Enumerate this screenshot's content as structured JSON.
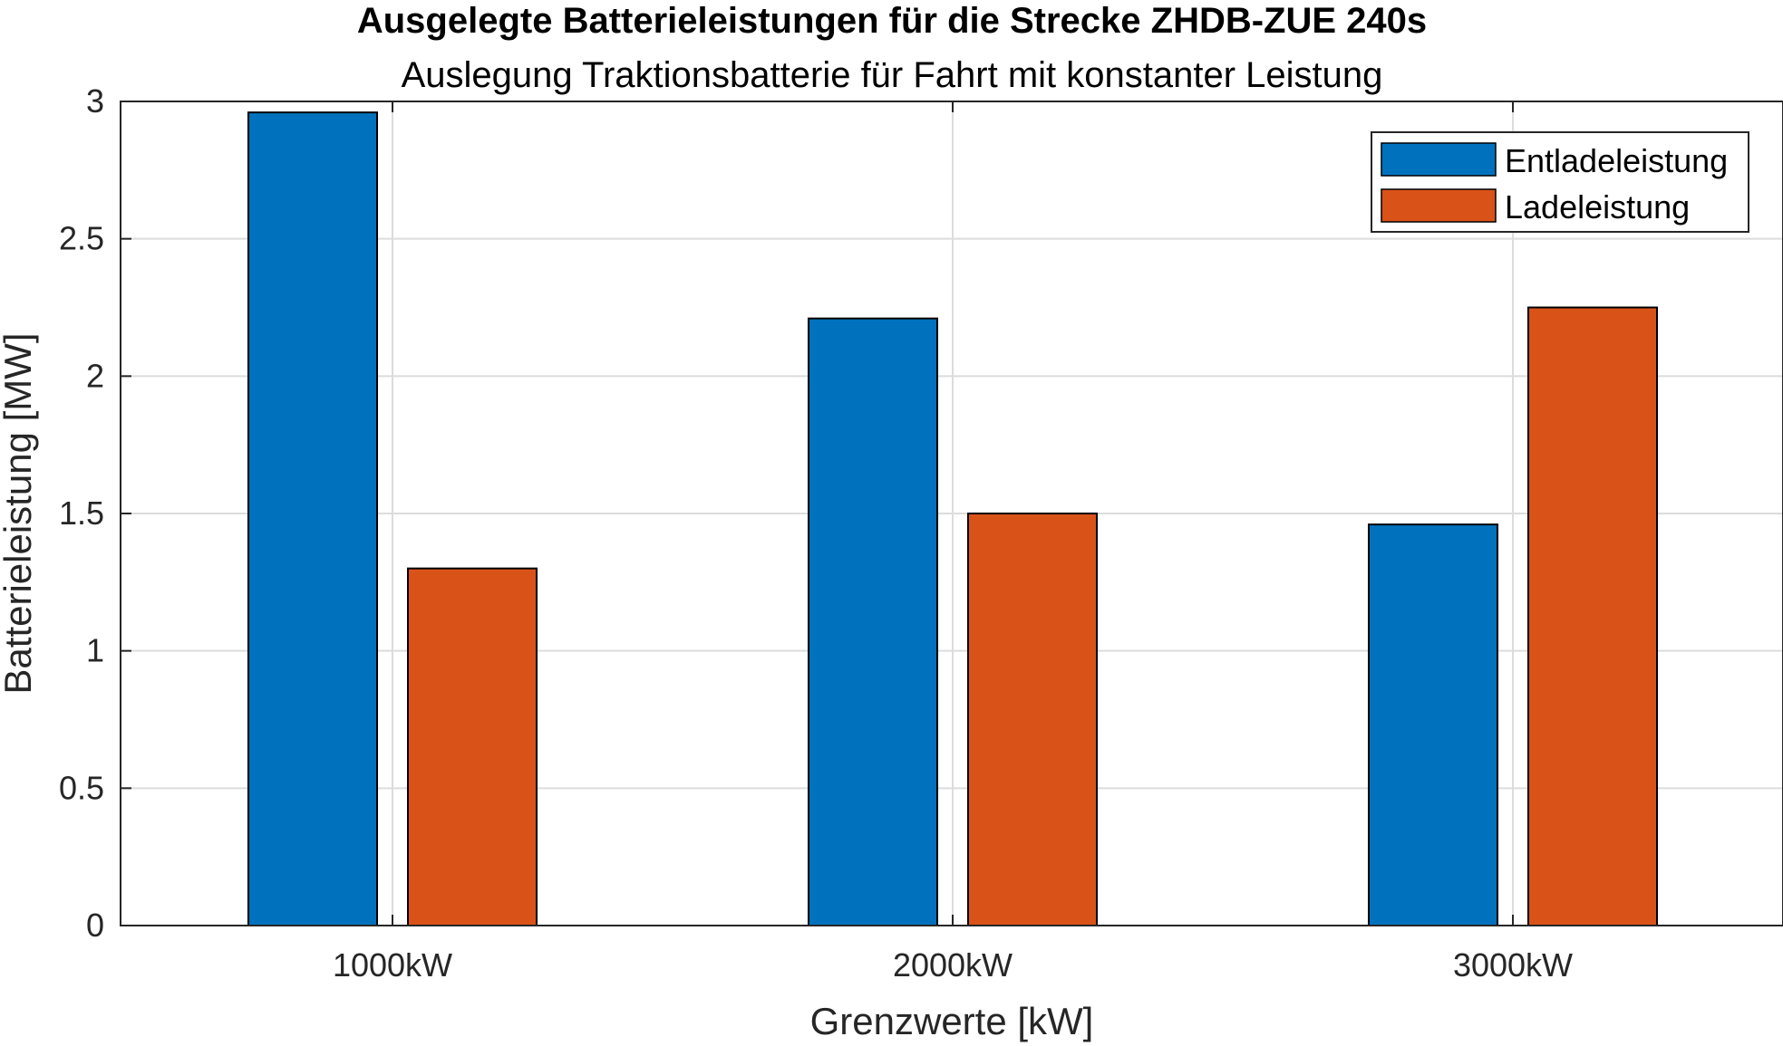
{
  "chart_data": {
    "type": "bar",
    "title": "Ausgelegte Batterieleistungen für die Strecke ZHDB-ZUE 240s",
    "subtitle": "Auslegung Traktionsbatterie für Fahrt mit konstanter Leistung",
    "xlabel": "Grenzwerte [kW]",
    "ylabel": "Batterieleistung [MW]",
    "categories": [
      "1000kW",
      "2000kW",
      "3000kW"
    ],
    "series": [
      {
        "name": "Entladeleistung",
        "color": "#0072BD",
        "values": [
          2.96,
          2.21,
          1.46
        ]
      },
      {
        "name": "Ladeleistung",
        "color": "#D95319",
        "values": [
          1.3,
          1.5,
          2.25
        ]
      }
    ],
    "ylim": [
      0,
      3
    ],
    "yticks": [
      "0",
      "0.5",
      "1",
      "1.5",
      "2",
      "2.5",
      "3"
    ],
    "grid": true,
    "legend_position": "top-right"
  }
}
